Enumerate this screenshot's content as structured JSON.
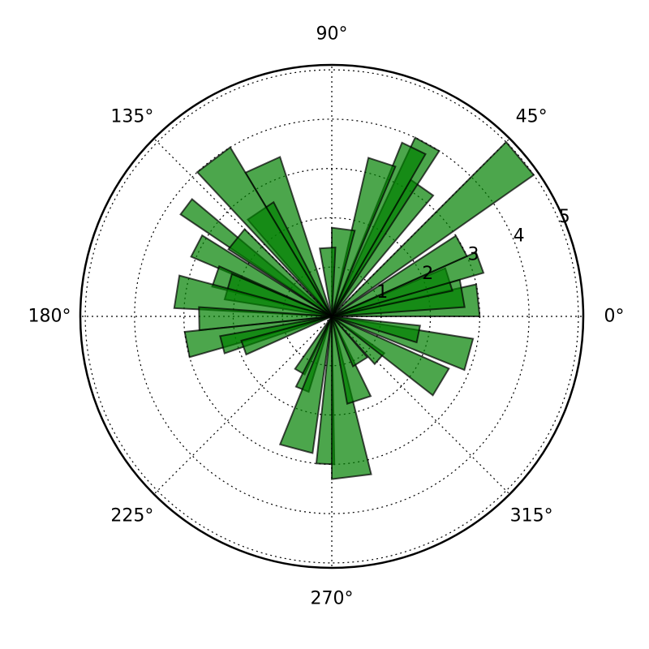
{
  "chart_data": {
    "type": "polar-area",
    "title": "",
    "angle_ticks": [
      {
        "value": 0,
        "label": "0°"
      },
      {
        "value": 45,
        "label": "45°"
      },
      {
        "value": 90,
        "label": "90°"
      },
      {
        "value": 135,
        "label": "135°"
      },
      {
        "value": 180,
        "label": "180°"
      },
      {
        "value": 225,
        "label": "225°"
      },
      {
        "value": 270,
        "label": "270°"
      },
      {
        "value": 315,
        "label": "315°"
      }
    ],
    "radial_ticks": [
      {
        "value": 1,
        "label": "1"
      },
      {
        "value": 2,
        "label": "2"
      },
      {
        "value": 3,
        "label": "3"
      },
      {
        "value": 4,
        "label": "4"
      },
      {
        "value": 5,
        "label": "5"
      }
    ],
    "rlim": [
      0,
      5.1
    ],
    "grid": true,
    "colors": {
      "fill": "#008000",
      "edge": "#000000",
      "fill_opacity": 0.7
    },
    "wedges": [
      {
        "theta_start": 0,
        "theta_end": 12.5,
        "radius": 3.0
      },
      {
        "theta_start": 4,
        "theta_end": 16,
        "radius": 2.7
      },
      {
        "theta_start": 12,
        "theta_end": 23,
        "radius": 2.5
      },
      {
        "theta_start": 16,
        "theta_end": 24,
        "radius": 3.2
      },
      {
        "theta_start": 24,
        "theta_end": 33,
        "radius": 3.0
      },
      {
        "theta_start": 35,
        "theta_end": 45,
        "radius": 5.0
      },
      {
        "theta_start": 50,
        "theta_end": 60,
        "radius": 3.2
      },
      {
        "theta_start": 57,
        "theta_end": 65,
        "radius": 4.0
      },
      {
        "theta_start": 60,
        "theta_end": 68,
        "radius": 3.8
      },
      {
        "theta_start": 67,
        "theta_end": 77,
        "radius": 3.3
      },
      {
        "theta_start": 75,
        "theta_end": 90,
        "radius": 1.8
      },
      {
        "theta_start": 87,
        "theta_end": 100,
        "radius": 1.4
      },
      {
        "theta_start": 108,
        "theta_end": 121,
        "radius": 3.4
      },
      {
        "theta_start": 117,
        "theta_end": 131,
        "radius": 2.6
      },
      {
        "theta_start": 121,
        "theta_end": 133,
        "radius": 4.0
      },
      {
        "theta_start": 140,
        "theta_end": 146,
        "radius": 3.7
      },
      {
        "theta_start": 135,
        "theta_end": 147,
        "radius": 2.5
      },
      {
        "theta_start": 148,
        "theta_end": 157,
        "radius": 3.1
      },
      {
        "theta_start": 156,
        "theta_end": 166,
        "radius": 2.5
      },
      {
        "theta_start": 157,
        "theta_end": 171,
        "radius": 2.2
      },
      {
        "theta_start": 165,
        "theta_end": 177,
        "radius": 3.2
      },
      {
        "theta_start": 176,
        "theta_end": 186,
        "radius": 2.7
      },
      {
        "theta_start": 186,
        "theta_end": 196,
        "radius": 3.0
      },
      {
        "theta_start": 190,
        "theta_end": 199,
        "radius": 2.3
      },
      {
        "theta_start": 195,
        "theta_end": 204,
        "radius": 1.9
      },
      {
        "theta_start": 235,
        "theta_end": 245,
        "radius": 1.3
      },
      {
        "theta_start": 243,
        "theta_end": 253,
        "radius": 1.6
      },
      {
        "theta_start": 248,
        "theta_end": 262,
        "radius": 2.8
      },
      {
        "theta_start": 264,
        "theta_end": 271,
        "radius": 3.0
      },
      {
        "theta_start": 270,
        "theta_end": 284,
        "radius": 3.3
      },
      {
        "theta_start": 280,
        "theta_end": 296,
        "radius": 1.8
      },
      {
        "theta_start": 293,
        "theta_end": 311,
        "radius": 1.1
      },
      {
        "theta_start": 312,
        "theta_end": 325,
        "radius": 1.3
      },
      {
        "theta_start": 322,
        "theta_end": 336,
        "radius": 2.6
      },
      {
        "theta_start": 338,
        "theta_end": 351,
        "radius": 2.9
      },
      {
        "theta_start": 343,
        "theta_end": 354,
        "radius": 1.8
      }
    ]
  }
}
